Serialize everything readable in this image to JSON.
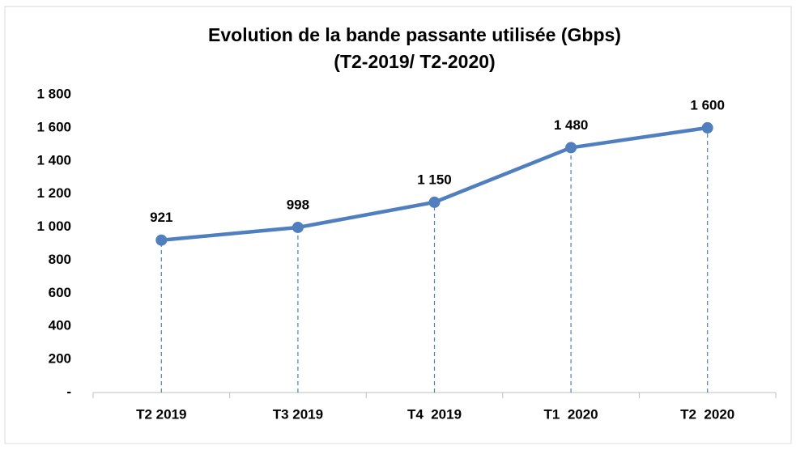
{
  "chart_data": {
    "type": "line",
    "title": "Evolution de la bande passante utilisée (Gbps)",
    "subtitle": "(T2-2019/ T2-2020)",
    "categories": [
      "T2 2019",
      "T3 2019",
      "T4  2019",
      "T1  2020",
      "T2  2020"
    ],
    "series": [
      {
        "name": "Bande passante",
        "color": "#4f7fbf",
        "values": [
          921,
          998,
          1150,
          1480,
          1600
        ],
        "value_labels": [
          "921",
          "998",
          "1 150",
          "1 480",
          "1 600"
        ]
      }
    ],
    "ylim": [
      0,
      1800
    ],
    "yticks": [
      {
        "value": 0,
        "label": "-"
      },
      200,
      400,
      600,
      800,
      {
        "value": 1000,
        "label": "1 000"
      },
      {
        "value": 1200,
        "label": "1 200"
      },
      {
        "value": 1400,
        "label": "1 400"
      },
      {
        "value": 1600,
        "label": "1 600"
      },
      {
        "value": 1800,
        "label": "1 800"
      }
    ],
    "grid": false
  }
}
